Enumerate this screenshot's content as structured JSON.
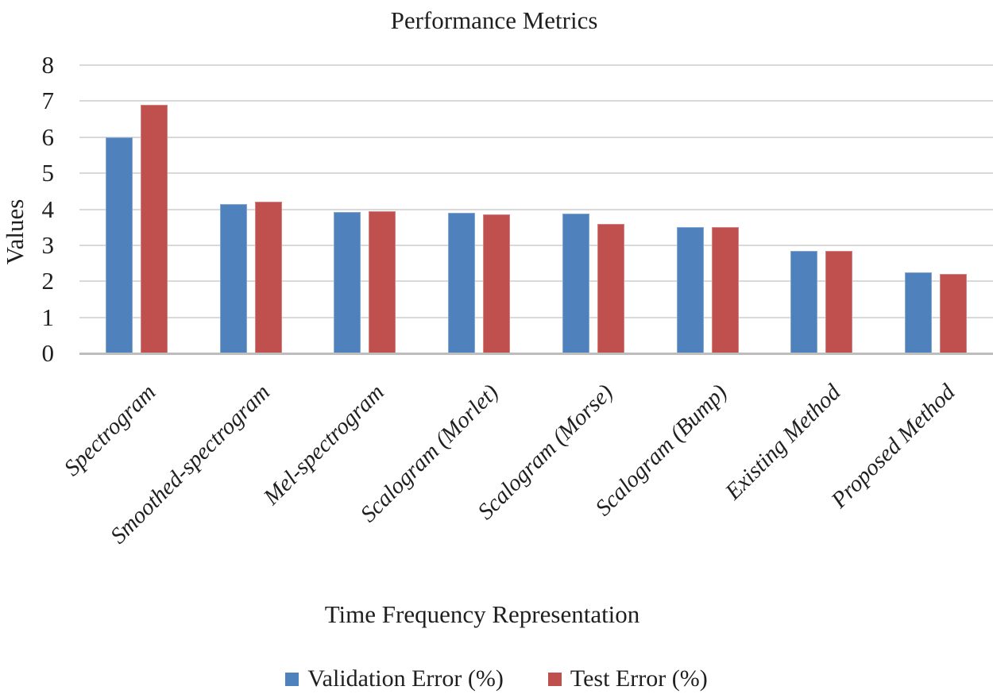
{
  "chart_data": {
    "type": "bar",
    "title": "Performance Metrics",
    "xlabel": "Time Frequency Representation",
    "ylabel": "Values",
    "categories": [
      "Spectrogram",
      "Smoothed-spectrogram",
      "Mel-spectrogram",
      "Scalogram (Morlet)",
      "Scalogram (Morse)",
      "Scalogram (Bump)",
      "Existing Method",
      "Proposed Method"
    ],
    "series": [
      {
        "name": "Validation Error (%)",
        "color": "#4F81BD",
        "values": [
          6.0,
          4.15,
          3.93,
          3.9,
          3.87,
          3.5,
          2.85,
          2.25
        ]
      },
      {
        "name": "Test Error (%)",
        "color": "#C0504D",
        "values": [
          6.9,
          4.2,
          3.95,
          3.85,
          3.6,
          3.5,
          2.85,
          2.2
        ]
      }
    ],
    "ylim": [
      0,
      8
    ],
    "ytick_step": 1,
    "grid": "horizontal",
    "legend_position": "bottom",
    "gridline_color": "#D9D9D9",
    "axis_line_color": "#BDBDBD",
    "text_color": "#1F1F1F"
  }
}
